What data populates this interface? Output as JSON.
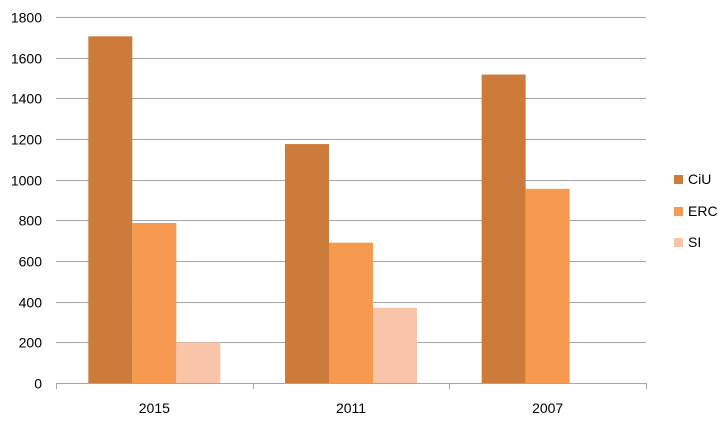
{
  "chart_data": {
    "type": "bar",
    "categories": [
      "2015",
      "2011",
      "2007"
    ],
    "series": [
      {
        "name": "CiU",
        "values": [
          1705,
          1175,
          1517
        ],
        "color": "#cc7b3a"
      },
      {
        "name": "ERC",
        "values": [
          787,
          690,
          955
        ],
        "color": "#f59a4f"
      },
      {
        "name": "SI",
        "values": [
          200,
          370,
          0
        ],
        "color": "#f9c5a8"
      }
    ],
    "ylim": [
      0,
      1800
    ],
    "yticks": [
      0,
      200,
      400,
      600,
      800,
      1000,
      1200,
      1400,
      1600,
      1800
    ],
    "grid": true,
    "legend": "right",
    "gridline_color": "#a6a6a6",
    "axis_color": "#a6a6a6"
  }
}
